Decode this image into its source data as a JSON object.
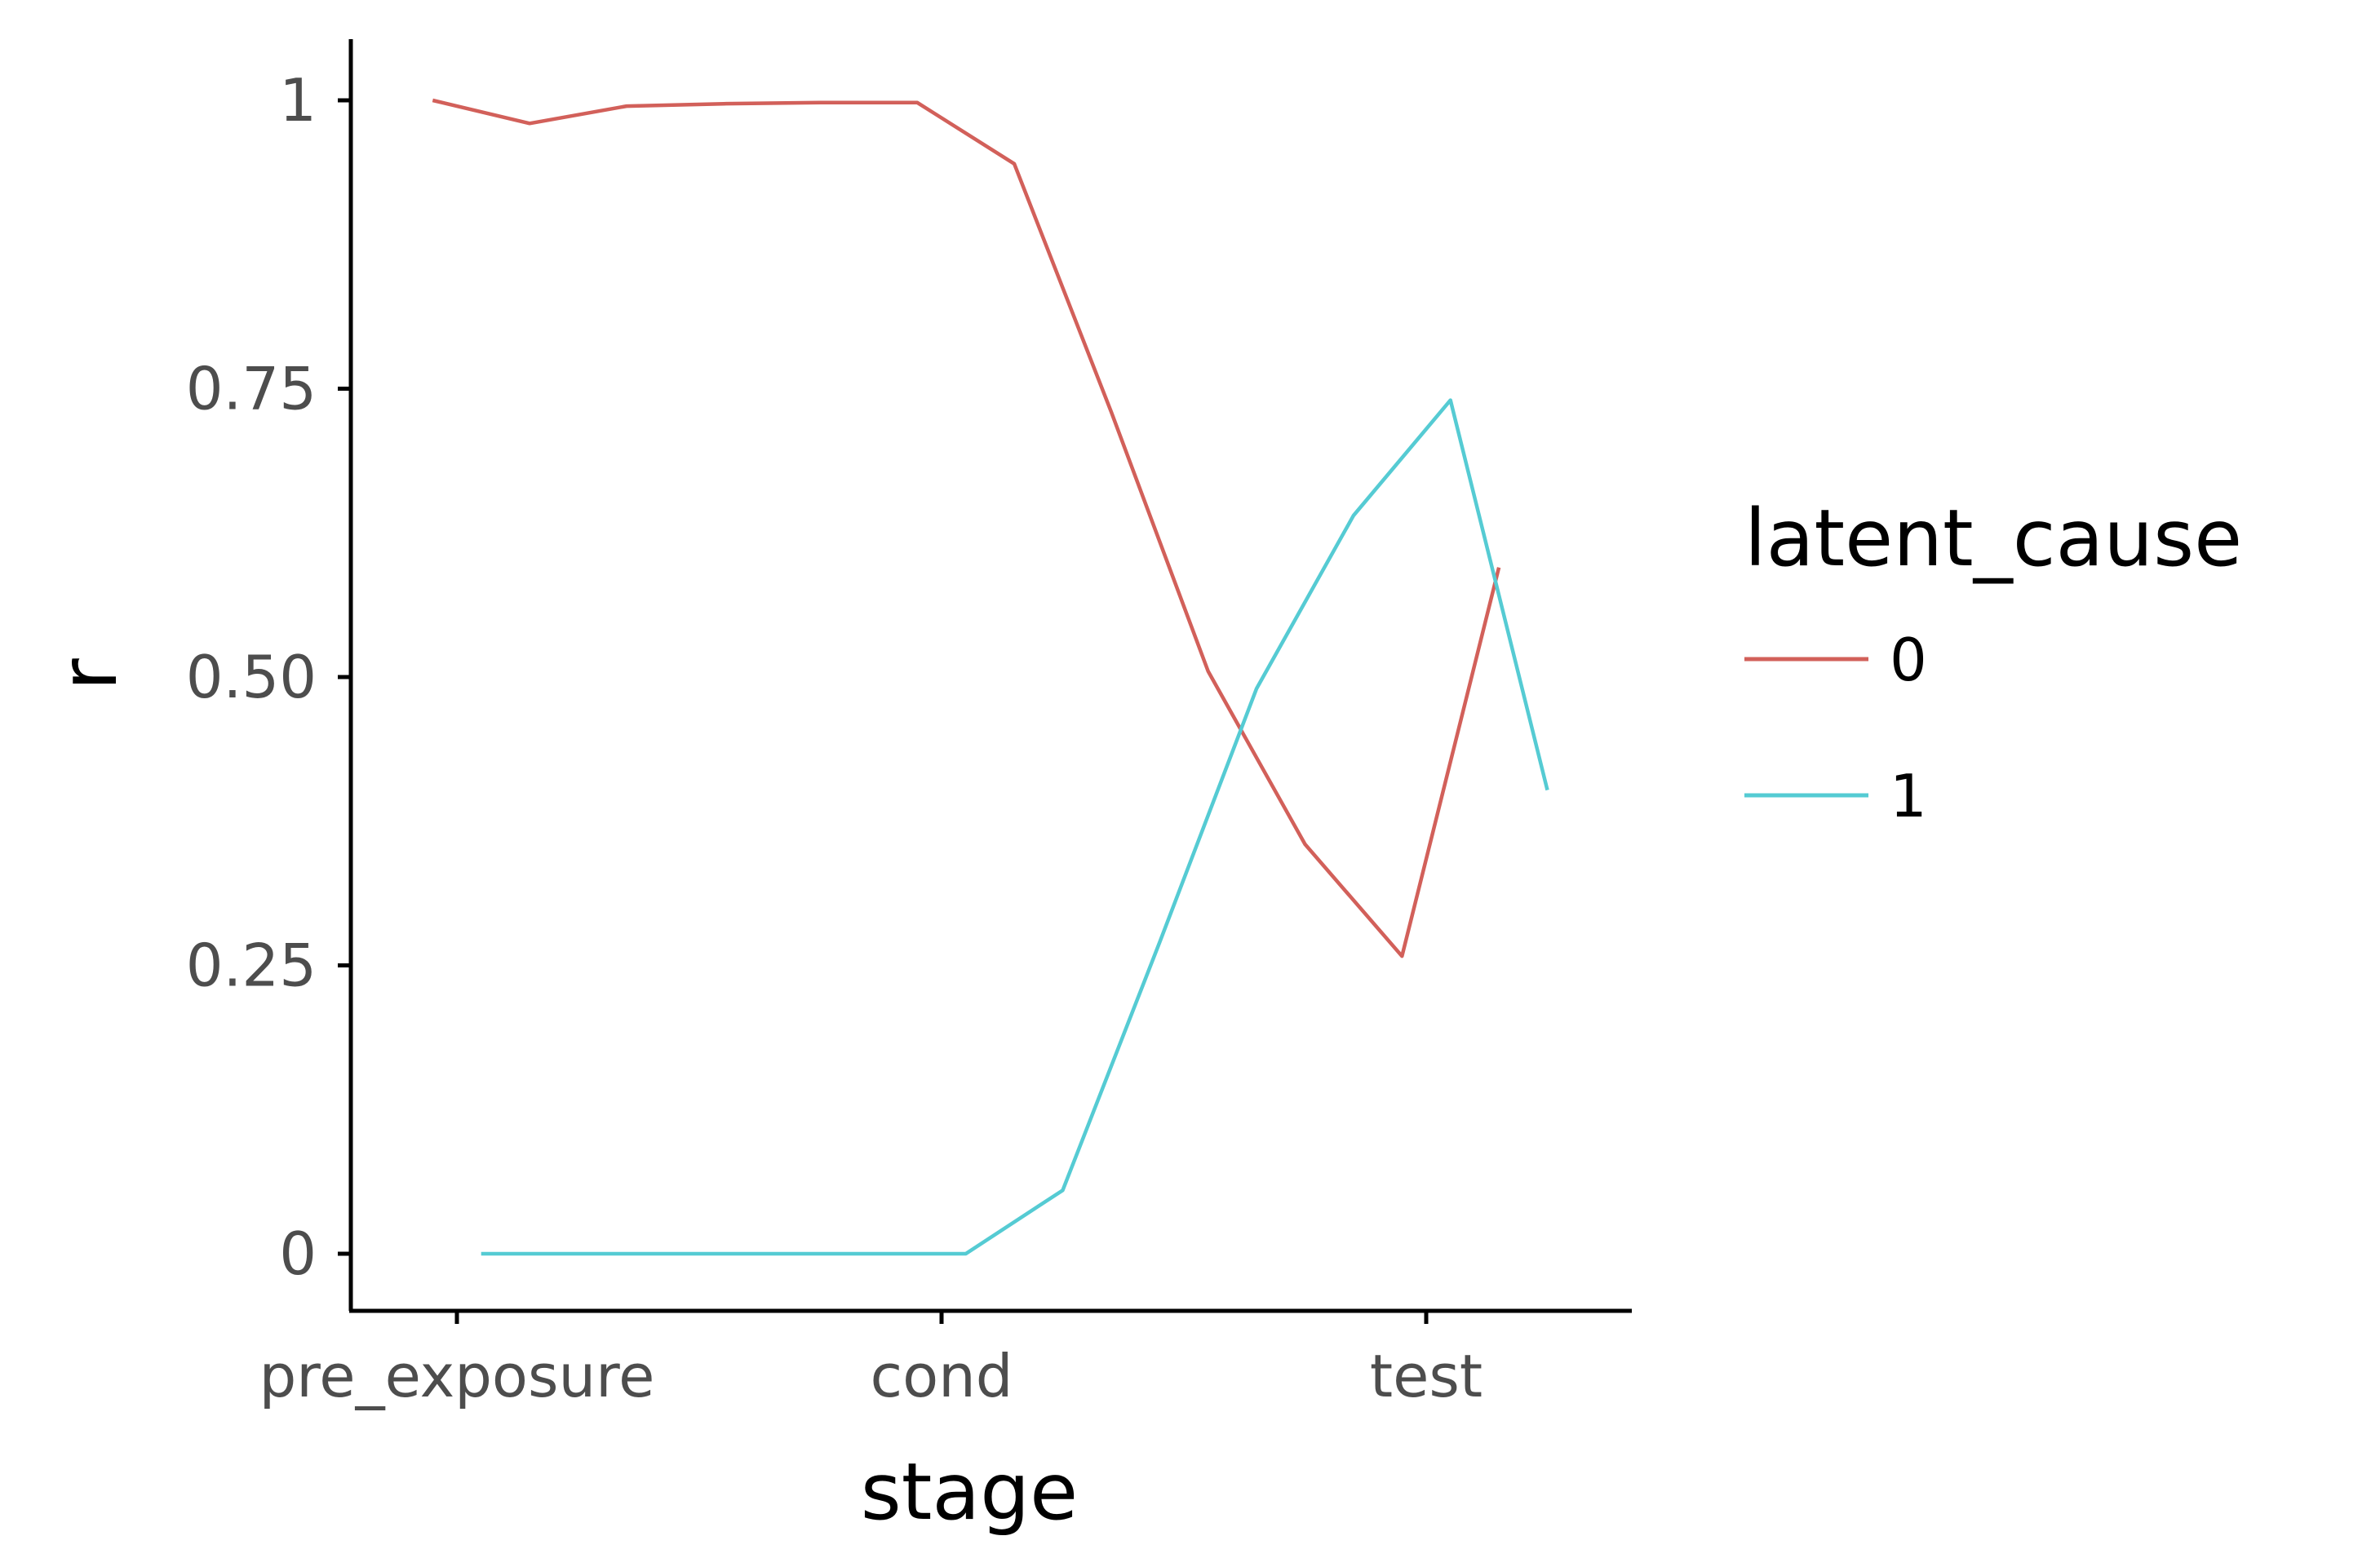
{
  "chart_data": {
    "type": "line",
    "xlabel": "stage",
    "ylabel": "r",
    "x_tick_labels": [
      "pre_exposure",
      "cond",
      "test"
    ],
    "y_ticks": [
      0,
      0.25,
      0.5,
      0.75,
      1
    ],
    "y_tick_labels": [
      "0",
      "0.25",
      "0.50",
      "0.75",
      "1"
    ],
    "ylim": [
      -0.05,
      1.05
    ],
    "legend": {
      "title": "latent_cause",
      "position": "right"
    },
    "series": [
      {
        "name": "0",
        "color": "#d2605a",
        "x": [
          -0.05,
          0.15,
          0.35,
          0.55,
          0.75,
          0.95,
          1.15,
          1.35,
          1.55,
          1.75,
          1.95,
          2.15
        ],
        "y": [
          1.0,
          0.98,
          0.995,
          0.997,
          0.998,
          0.998,
          0.945,
          0.73,
          0.505,
          0.355,
          0.258,
          0.595
        ]
      },
      {
        "name": "1",
        "color": "#55cbd3",
        "x": [
          0.05,
          0.25,
          0.45,
          0.65,
          0.85,
          1.05,
          1.25,
          1.45,
          1.65,
          1.85,
          2.05,
          2.25
        ],
        "y": [
          0.0,
          0.0,
          0.0,
          0.0,
          0.0,
          0.0,
          0.055,
          0.27,
          0.49,
          0.64,
          0.74,
          0.402
        ]
      }
    ]
  }
}
